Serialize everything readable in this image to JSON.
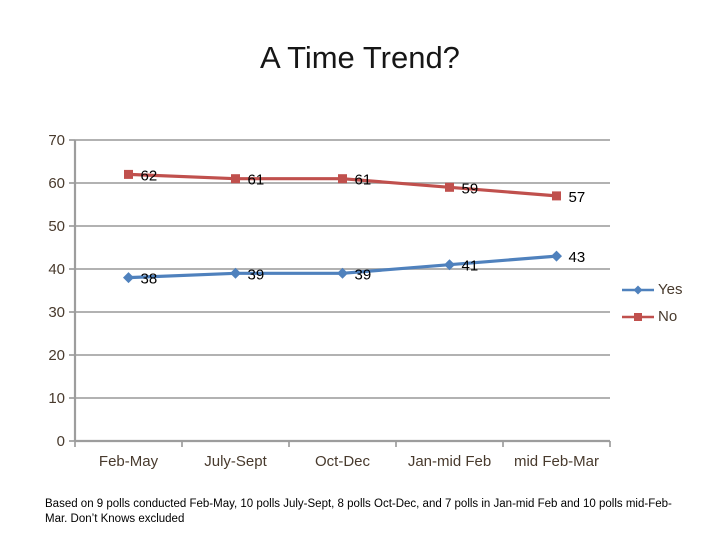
{
  "chart_data": {
    "type": "line",
    "title": "A Time Trend?",
    "categories": [
      "Feb-May",
      "July-Sept",
      "Oct-Dec",
      "Jan-mid Feb",
      "mid Feb-Mar"
    ],
    "series": [
      {
        "name": "Yes",
        "values": [
          38,
          39,
          39,
          41,
          43
        ],
        "color": "#4F81BD",
        "marker": "diamond"
      },
      {
        "name": "No",
        "values": [
          62,
          61,
          61,
          59,
          57
        ],
        "color": "#C0504D",
        "marker": "square"
      }
    ],
    "xlabel": "",
    "ylabel": "",
    "ylim": [
      0,
      70
    ],
    "ytick_step": 10,
    "yticks": [
      0,
      10,
      20,
      30,
      40,
      50,
      60,
      70
    ],
    "grid": true,
    "data_labels": true,
    "legend_position": "right"
  },
  "colors": {
    "grid": "#A7A7A7",
    "axis": "#9D9D9D",
    "axis_text": "#483a2d",
    "data_label": "#000000"
  },
  "footer": {
    "line1": "Based on 9 polls conducted Feb-May, 10 polls July-Sept, 8 polls Oct-Dec, and 7 polls in Jan-mid Feb and 10 polls mid-Feb-",
    "line2": "Mar. Don’t Knows excluded"
  }
}
